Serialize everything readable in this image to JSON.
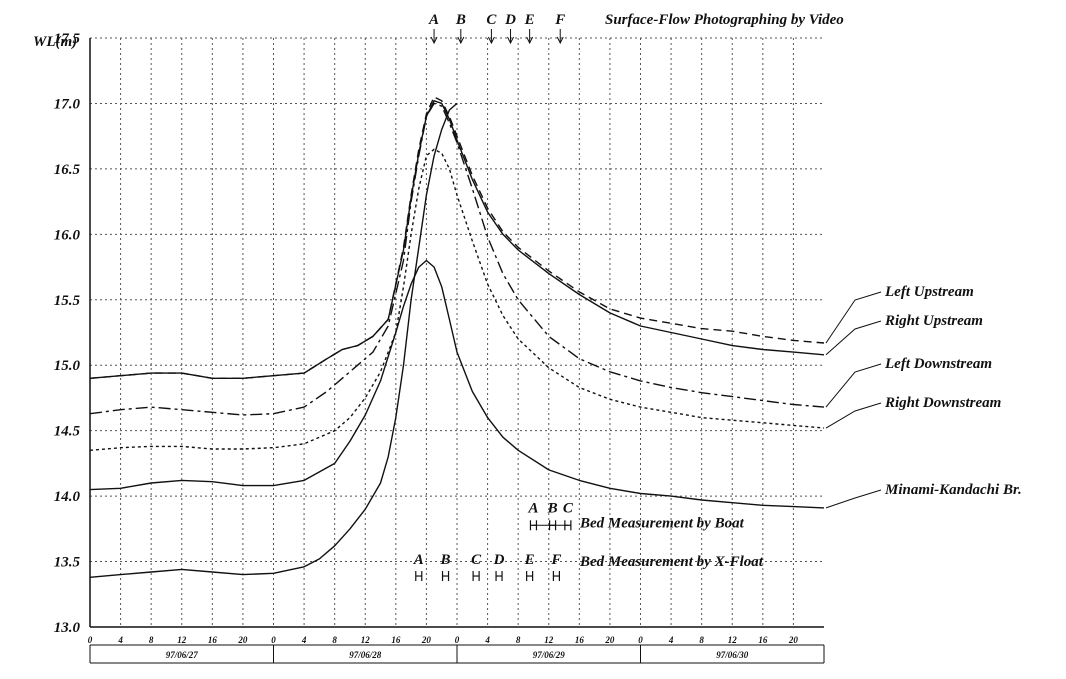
{
  "chart_data": {
    "type": "line",
    "title": "",
    "ylabel": "WL(m)",
    "xlabel": "",
    "ylim": [
      13.0,
      17.5
    ],
    "yticks": [
      "17.5",
      "17.0",
      "16.5",
      "16.0",
      "15.5",
      "15.0",
      "14.5",
      "14.0",
      "13.5",
      "13.0"
    ],
    "xlim": [
      0,
      96
    ],
    "xtick_labels": [
      "0",
      "4",
      "8",
      "12",
      "16",
      "20",
      "0",
      "4",
      "8",
      "12",
      "16",
      "20",
      "0",
      "4",
      "8",
      "12",
      "16",
      "20",
      "0",
      "4",
      "8",
      "12",
      "16",
      "20"
    ],
    "dates": [
      "97/06/27",
      "97/06/28",
      "97/06/29",
      "97/06/30"
    ],
    "grid": true,
    "series": [
      {
        "name": "Left Upstream",
        "dash": "8,5",
        "x": [
          0,
          4,
          8,
          12,
          16,
          20,
          24,
          28,
          31,
          33,
          35,
          37,
          39,
          41,
          42,
          43,
          44,
          45,
          46,
          47,
          48,
          50,
          52,
          54,
          56,
          60,
          64,
          68,
          72,
          76,
          80,
          84,
          88,
          92,
          96
        ],
        "y": [
          14.9,
          14.92,
          14.94,
          14.94,
          14.9,
          14.9,
          14.92,
          14.94,
          15.05,
          15.12,
          15.15,
          15.22,
          15.35,
          15.9,
          16.3,
          16.65,
          16.92,
          17.05,
          17.02,
          16.9,
          16.75,
          16.45,
          16.2,
          16.02,
          15.9,
          15.72,
          15.56,
          15.43,
          15.36,
          15.32,
          15.28,
          15.26,
          15.22,
          15.19,
          15.17
        ]
      },
      {
        "name": "Right Upstream",
        "dash": "",
        "x": [
          0,
          4,
          8,
          12,
          16,
          20,
          24,
          28,
          31,
          33,
          35,
          37,
          39,
          41,
          42,
          43,
          44,
          45,
          46,
          47,
          48,
          50,
          52,
          54,
          56,
          60,
          64,
          68,
          72,
          76,
          80,
          84,
          88,
          92,
          96
        ],
        "y": [
          14.9,
          14.92,
          14.94,
          14.94,
          14.9,
          14.9,
          14.92,
          14.94,
          15.05,
          15.12,
          15.15,
          15.22,
          15.35,
          15.88,
          16.28,
          16.62,
          16.9,
          17.02,
          17.0,
          16.88,
          16.72,
          16.42,
          16.17,
          16.0,
          15.88,
          15.7,
          15.54,
          15.4,
          15.3,
          15.25,
          15.2,
          15.15,
          15.12,
          15.1,
          15.08
        ]
      },
      {
        "name": "Left Downstream",
        "dash": "12,4,3,4",
        "x": [
          0,
          4,
          8,
          12,
          16,
          20,
          24,
          28,
          31,
          33,
          35,
          37,
          39,
          41,
          42,
          43,
          44,
          45,
          46,
          47,
          48,
          50,
          52,
          54,
          56,
          60,
          64,
          68,
          72,
          76,
          80,
          84,
          88,
          92,
          96
        ],
        "y": [
          14.63,
          14.66,
          14.68,
          14.66,
          14.64,
          14.62,
          14.63,
          14.68,
          14.8,
          14.9,
          15.0,
          15.1,
          15.3,
          15.8,
          16.25,
          16.6,
          16.9,
          17.0,
          16.98,
          16.85,
          16.7,
          16.35,
          15.98,
          15.7,
          15.5,
          15.22,
          15.05,
          14.95,
          14.88,
          14.83,
          14.79,
          14.76,
          14.73,
          14.7,
          14.68
        ]
      },
      {
        "name": "Right Downstream",
        "dash": "3,3",
        "x": [
          0,
          4,
          8,
          12,
          16,
          20,
          24,
          28,
          32,
          34,
          36,
          38,
          40,
          41,
          42,
          43,
          44,
          45,
          46,
          47,
          48,
          50,
          52,
          54,
          56,
          60,
          64,
          68,
          72,
          76,
          80,
          84,
          88,
          92,
          96
        ],
        "y": [
          14.35,
          14.37,
          14.38,
          14.38,
          14.36,
          14.36,
          14.37,
          14.4,
          14.5,
          14.6,
          14.75,
          14.95,
          15.25,
          15.6,
          16.0,
          16.35,
          16.6,
          16.65,
          16.62,
          16.5,
          16.3,
          15.95,
          15.62,
          15.38,
          15.2,
          14.98,
          14.83,
          14.74,
          14.68,
          14.64,
          14.6,
          14.58,
          14.56,
          14.54,
          14.52
        ]
      },
      {
        "name": "Minami-Kandachi Br.",
        "dash": "",
        "x": [
          0,
          4,
          8,
          12,
          16,
          20,
          24,
          28,
          32,
          34,
          36,
          38,
          40,
          41,
          42,
          43,
          44,
          45,
          46,
          47,
          48,
          50,
          52,
          54,
          56,
          60,
          64,
          68,
          72,
          76,
          80,
          84,
          88,
          92,
          96
        ],
        "y": [
          14.05,
          14.06,
          14.1,
          14.12,
          14.11,
          14.08,
          14.08,
          14.12,
          14.25,
          14.42,
          14.62,
          14.88,
          15.25,
          15.45,
          15.62,
          15.75,
          15.8,
          15.75,
          15.6,
          15.35,
          15.1,
          14.8,
          14.6,
          14.45,
          14.35,
          14.2,
          14.12,
          14.06,
          14.02,
          14.0,
          13.97,
          13.95,
          13.93,
          13.92,
          13.91
        ]
      },
      {
        "name": "",
        "dash": "",
        "x": [
          0,
          4,
          8,
          12,
          16,
          20,
          24,
          28,
          30,
          32,
          34,
          36,
          38,
          39,
          40,
          41,
          42,
          43,
          44,
          45,
          46,
          47,
          48
        ],
        "y": [
          13.38,
          13.4,
          13.42,
          13.44,
          13.42,
          13.4,
          13.41,
          13.46,
          13.52,
          13.62,
          13.75,
          13.9,
          14.1,
          14.3,
          14.6,
          15.0,
          15.5,
          15.9,
          16.3,
          16.6,
          16.8,
          16.95,
          17.0
        ]
      }
    ],
    "legend_labels": [
      "Left Upstream",
      "Right Upstream",
      "Left Downstream",
      "Right Downstream",
      "Minami-Kandachi Br."
    ],
    "annotations": {
      "surface_flow": {
        "title": "Surface-Flow Photographing by Video",
        "marks": [
          {
            "label": "A",
            "x": 45
          },
          {
            "label": "B",
            "x": 48.5
          },
          {
            "label": "C",
            "x": 52.5
          },
          {
            "label": "D",
            "x": 55
          },
          {
            "label": "E",
            "x": 57.5
          },
          {
            "label": "F",
            "x": 61.5
          }
        ]
      },
      "bed_boat": {
        "title": "Bed Measurement by Boat",
        "level": 13.8,
        "marks": [
          {
            "label": "A",
            "x": 58
          },
          {
            "label": "B",
            "x": 60.5
          },
          {
            "label": "C",
            "x": 62.5
          }
        ]
      },
      "bed_xfloat": {
        "title": "Bed Measurement by X-Float",
        "level": 13.42,
        "marks": [
          {
            "label": "A",
            "x": 43
          },
          {
            "label": "B",
            "x": 46.5
          },
          {
            "label": "C",
            "x": 50.5
          },
          {
            "label": "D",
            "x": 53.5
          },
          {
            "label": "E",
            "x": 57.5
          },
          {
            "label": "F",
            "x": 61
          }
        ]
      }
    }
  }
}
